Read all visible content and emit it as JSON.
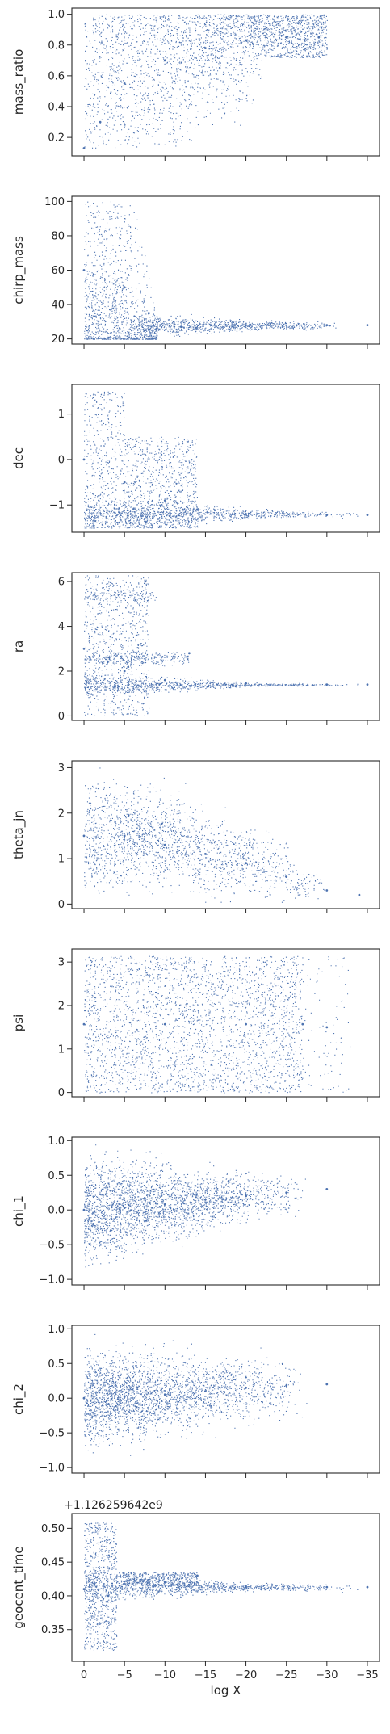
{
  "chart_data": {
    "type": "scatter",
    "shared_x": {
      "label": "log X",
      "lim": [
        1.5,
        -36.5
      ],
      "ticks": [
        0,
        -5,
        -10,
        -15,
        -20,
        -25,
        -30,
        -35
      ],
      "tick_labels": [
        "0",
        "−5",
        "−10",
        "−15",
        "−20",
        "−25",
        "−30",
        "−35"
      ]
    },
    "point_color": "#4c72b0",
    "panels": [
      {
        "ylabel": "mass_ratio",
        "ylim": [
          0.08,
          1.04
        ],
        "yticks": [
          0.2,
          0.4,
          0.6,
          0.8,
          1.0
        ],
        "ytick_labels": [
          "0.2",
          "0.4",
          "0.6",
          "0.8",
          "1.0"
        ],
        "offset_text": "",
        "description_points": [
          [
            0,
            0.13
          ],
          [
            -2,
            0.3
          ],
          [
            -5,
            0.55
          ],
          [
            -10,
            0.7
          ],
          [
            -15,
            0.78
          ],
          [
            -20,
            0.83
          ],
          [
            -25,
            0.85
          ],
          [
            -29,
            0.85
          ]
        ]
      },
      {
        "ylabel": "chirp_mass",
        "ylim": [
          17,
          103
        ],
        "yticks": [
          20,
          40,
          60,
          80,
          100
        ],
        "ytick_labels": [
          "20",
          "40",
          "60",
          "80",
          "100"
        ],
        "offset_text": "",
        "description_points": [
          [
            0,
            60
          ],
          [
            -5,
            50
          ],
          [
            -8,
            35
          ],
          [
            -12,
            27
          ],
          [
            -20,
            28
          ],
          [
            -30,
            28
          ],
          [
            -35,
            28
          ]
        ]
      },
      {
        "ylabel": "dec",
        "ylim": [
          -1.6,
          1.65
        ],
        "yticks": [
          -1,
          0,
          1
        ],
        "ytick_labels": [
          "−1",
          "0",
          "1"
        ],
        "offset_text": "",
        "description_points": [
          [
            0,
            0.0
          ],
          [
            -5,
            -0.5
          ],
          [
            -10,
            -0.9
          ],
          [
            -14,
            -1.1
          ],
          [
            -20,
            -1.2
          ],
          [
            -30,
            -1.22
          ],
          [
            -35,
            -1.22
          ]
        ]
      },
      {
        "ylabel": "ra",
        "ylim": [
          -0.2,
          6.4
        ],
        "yticks": [
          0,
          2,
          4,
          6
        ],
        "ytick_labels": [
          "0",
          "2",
          "4",
          "6"
        ],
        "offset_text": "",
        "description_points": [
          [
            0,
            3.0
          ],
          [
            -5,
            2.0
          ],
          [
            -10,
            1.6
          ],
          [
            -13,
            2.8
          ],
          [
            -20,
            1.45
          ],
          [
            -30,
            1.4
          ],
          [
            -35,
            1.4
          ]
        ]
      },
      {
        "ylabel": "theta_jn",
        "ylim": [
          -0.1,
          3.15
        ],
        "yticks": [
          0,
          1,
          2,
          3
        ],
        "ytick_labels": [
          "0",
          "1",
          "2",
          "3"
        ],
        "offset_text": "",
        "description_points": [
          [
            0,
            1.5
          ],
          [
            -5,
            1.5
          ],
          [
            -10,
            1.3
          ],
          [
            -15,
            1.1
          ],
          [
            -20,
            0.9
          ],
          [
            -25,
            0.6
          ],
          [
            -30,
            0.3
          ],
          [
            -34,
            0.2
          ]
        ]
      },
      {
        "ylabel": "psi",
        "ylim": [
          -0.1,
          3.3
        ],
        "yticks": [
          0,
          1,
          2,
          3
        ],
        "ytick_labels": [
          "0",
          "1",
          "2",
          "3"
        ],
        "offset_text": "",
        "description_points": [
          [
            0,
            1.57
          ],
          [
            -10,
            1.57
          ],
          [
            -20,
            1.57
          ],
          [
            -27,
            1.57
          ],
          [
            -30,
            1.5
          ]
        ]
      },
      {
        "ylabel": "chi_1",
        "ylim": [
          -1.08,
          1.05
        ],
        "yticks": [
          -1.0,
          -0.5,
          0.0,
          0.5,
          1.0
        ],
        "ytick_labels": [
          "−1.0",
          "−0.5",
          "0.0",
          "0.5",
          "1.0"
        ],
        "offset_text": "",
        "description_points": [
          [
            0,
            0.0
          ],
          [
            -5,
            0.03
          ],
          [
            -10,
            0.08
          ],
          [
            -15,
            0.15
          ],
          [
            -20,
            0.2
          ],
          [
            -25,
            0.25
          ],
          [
            -30,
            0.3
          ]
        ]
      },
      {
        "ylabel": "chi_2",
        "ylim": [
          -1.08,
          1.05
        ],
        "yticks": [
          -1.0,
          -0.5,
          0.0,
          0.5,
          1.0
        ],
        "ytick_labels": [
          "−1.0",
          "−0.5",
          "0.0",
          "0.5",
          "1.0"
        ],
        "offset_text": "",
        "description_points": [
          [
            0,
            0.0
          ],
          [
            -5,
            0.02
          ],
          [
            -10,
            0.05
          ],
          [
            -15,
            0.1
          ],
          [
            -20,
            0.15
          ],
          [
            -25,
            0.18
          ],
          [
            -30,
            0.2
          ]
        ]
      },
      {
        "ylabel": "geocent_time",
        "ylim": [
          0.303,
          0.522
        ],
        "yticks": [
          0.35,
          0.4,
          0.45,
          0.5
        ],
        "ytick_labels": [
          "0.35",
          "0.40",
          "0.45",
          "0.50"
        ],
        "offset_text": "+1.126259642e9",
        "description_points": [
          [
            0,
            0.41
          ],
          [
            -3,
            0.4
          ],
          [
            -6,
            0.41
          ],
          [
            -10,
            0.42
          ],
          [
            -14,
            0.43
          ],
          [
            -20,
            0.413
          ],
          [
            -30,
            0.413
          ],
          [
            -35,
            0.413
          ]
        ]
      }
    ]
  }
}
